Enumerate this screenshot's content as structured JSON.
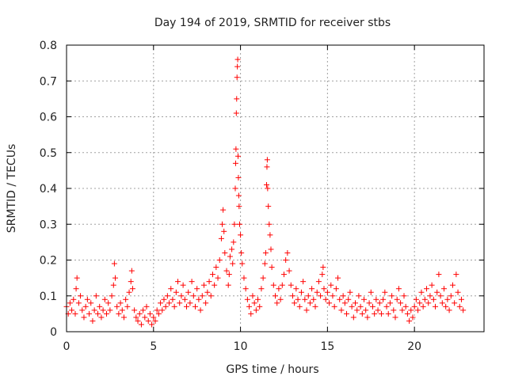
{
  "chart_data": {
    "type": "scatter",
    "title": "Day 194 of 2019, SRMTID for receiver stbs",
    "xlabel": "GPS time / hours",
    "ylabel": "SRMTID / TECUs",
    "xlim": [
      0,
      24
    ],
    "ylim": [
      0,
      0.8
    ],
    "xticks": [
      0,
      5,
      10,
      15,
      20
    ],
    "yticks": [
      0,
      0.1,
      0.2,
      0.3,
      0.4,
      0.5,
      0.6,
      0.7,
      0.8
    ],
    "grid": true,
    "marker": "+",
    "color": "#ff0000",
    "series": [
      {
        "name": "stbs",
        "points": [
          [
            0.0,
            0.07
          ],
          [
            0.1,
            0.05
          ],
          [
            0.2,
            0.08
          ],
          [
            0.3,
            0.06
          ],
          [
            0.4,
            0.09
          ],
          [
            0.5,
            0.05
          ],
          [
            0.55,
            0.12
          ],
          [
            0.6,
            0.15
          ],
          [
            0.7,
            0.08
          ],
          [
            0.8,
            0.1
          ],
          [
            0.9,
            0.06
          ],
          [
            1.0,
            0.04
          ],
          [
            1.1,
            0.07
          ],
          [
            1.2,
            0.09
          ],
          [
            1.3,
            0.05
          ],
          [
            1.4,
            0.08
          ],
          [
            1.5,
            0.03
          ],
          [
            1.6,
            0.06
          ],
          [
            1.7,
            0.1
          ],
          [
            1.8,
            0.05
          ],
          [
            1.9,
            0.07
          ],
          [
            2.0,
            0.04
          ],
          [
            2.1,
            0.06
          ],
          [
            2.2,
            0.09
          ],
          [
            2.3,
            0.05
          ],
          [
            2.4,
            0.08
          ],
          [
            2.5,
            0.06
          ],
          [
            2.6,
            0.1
          ],
          [
            2.7,
            0.13
          ],
          [
            2.75,
            0.19
          ],
          [
            2.8,
            0.15
          ],
          [
            2.9,
            0.07
          ],
          [
            3.0,
            0.05
          ],
          [
            3.1,
            0.08
          ],
          [
            3.2,
            0.06
          ],
          [
            3.3,
            0.04
          ],
          [
            3.4,
            0.09
          ],
          [
            3.5,
            0.07
          ],
          [
            3.6,
            0.11
          ],
          [
            3.7,
            0.14
          ],
          [
            3.75,
            0.17
          ],
          [
            3.8,
            0.12
          ],
          [
            3.9,
            0.06
          ],
          [
            4.0,
            0.04
          ],
          [
            4.1,
            0.03
          ],
          [
            4.2,
            0.05
          ],
          [
            4.3,
            0.02
          ],
          [
            4.4,
            0.06
          ],
          [
            4.5,
            0.04
          ],
          [
            4.6,
            0.07
          ],
          [
            4.7,
            0.03
          ],
          [
            4.8,
            0.05
          ],
          [
            4.9,
            0.02
          ],
          [
            5.0,
            0.04
          ],
          [
            5.1,
            0.03
          ],
          [
            5.2,
            0.06
          ],
          [
            5.3,
            0.05
          ],
          [
            5.4,
            0.08
          ],
          [
            5.5,
            0.06
          ],
          [
            5.6,
            0.09
          ],
          [
            5.7,
            0.07
          ],
          [
            5.8,
            0.1
          ],
          [
            5.9,
            0.08
          ],
          [
            6.0,
            0.12
          ],
          [
            6.1,
            0.09
          ],
          [
            6.2,
            0.07
          ],
          [
            6.3,
            0.11
          ],
          [
            6.4,
            0.14
          ],
          [
            6.5,
            0.08
          ],
          [
            6.6,
            0.1
          ],
          [
            6.7,
            0.13
          ],
          [
            6.8,
            0.09
          ],
          [
            6.9,
            0.07
          ],
          [
            7.0,
            0.11
          ],
          [
            7.1,
            0.08
          ],
          [
            7.2,
            0.14
          ],
          [
            7.3,
            0.1
          ],
          [
            7.4,
            0.07
          ],
          [
            7.5,
            0.12
          ],
          [
            7.6,
            0.09
          ],
          [
            7.7,
            0.06
          ],
          [
            7.8,
            0.1
          ],
          [
            7.9,
            0.13
          ],
          [
            8.0,
            0.08
          ],
          [
            8.1,
            0.11
          ],
          [
            8.2,
            0.14
          ],
          [
            8.3,
            0.1
          ],
          [
            8.4,
            0.16
          ],
          [
            8.5,
            0.13
          ],
          [
            8.6,
            0.18
          ],
          [
            8.7,
            0.15
          ],
          [
            8.8,
            0.2
          ],
          [
            8.9,
            0.26
          ],
          [
            8.95,
            0.3
          ],
          [
            9.0,
            0.34
          ],
          [
            9.05,
            0.28
          ],
          [
            9.1,
            0.22
          ],
          [
            9.2,
            0.17
          ],
          [
            9.3,
            0.13
          ],
          [
            9.35,
            0.16
          ],
          [
            9.4,
            0.21
          ],
          [
            9.5,
            0.23
          ],
          [
            9.55,
            0.19
          ],
          [
            9.6,
            0.25
          ],
          [
            9.65,
            0.3
          ],
          [
            9.7,
            0.4
          ],
          [
            9.72,
            0.47
          ],
          [
            9.74,
            0.51
          ],
          [
            9.76,
            0.61
          ],
          [
            9.78,
            0.65
          ],
          [
            9.8,
            0.71
          ],
          [
            9.82,
            0.74
          ],
          [
            9.84,
            0.76
          ],
          [
            9.86,
            0.49
          ],
          [
            9.88,
            0.43
          ],
          [
            9.9,
            0.38
          ],
          [
            9.92,
            0.35
          ],
          [
            9.95,
            0.3
          ],
          [
            10.0,
            0.27
          ],
          [
            10.05,
            0.22
          ],
          [
            10.1,
            0.19
          ],
          [
            10.2,
            0.15
          ],
          [
            10.3,
            0.12
          ],
          [
            10.4,
            0.09
          ],
          [
            10.5,
            0.07
          ],
          [
            10.6,
            0.05
          ],
          [
            10.7,
            0.1
          ],
          [
            10.8,
            0.08
          ],
          [
            10.9,
            0.06
          ],
          [
            11.0,
            0.09
          ],
          [
            11.1,
            0.07
          ],
          [
            11.2,
            0.12
          ],
          [
            11.3,
            0.15
          ],
          [
            11.4,
            0.19
          ],
          [
            11.45,
            0.22
          ],
          [
            11.5,
            0.41
          ],
          [
            11.52,
            0.46
          ],
          [
            11.54,
            0.48
          ],
          [
            11.56,
            0.4
          ],
          [
            11.6,
            0.35
          ],
          [
            11.65,
            0.3
          ],
          [
            11.7,
            0.27
          ],
          [
            11.75,
            0.23
          ],
          [
            11.8,
            0.18
          ],
          [
            11.9,
            0.13
          ],
          [
            12.0,
            0.1
          ],
          [
            12.1,
            0.08
          ],
          [
            12.2,
            0.12
          ],
          [
            12.3,
            0.09
          ],
          [
            12.4,
            0.13
          ],
          [
            12.5,
            0.16
          ],
          [
            12.6,
            0.2
          ],
          [
            12.7,
            0.22
          ],
          [
            12.8,
            0.17
          ],
          [
            12.9,
            0.13
          ],
          [
            13.0,
            0.1
          ],
          [
            13.1,
            0.08
          ],
          [
            13.2,
            0.12
          ],
          [
            13.3,
            0.09
          ],
          [
            13.4,
            0.07
          ],
          [
            13.5,
            0.11
          ],
          [
            13.6,
            0.14
          ],
          [
            13.7,
            0.09
          ],
          [
            13.8,
            0.06
          ],
          [
            13.9,
            0.1
          ],
          [
            14.0,
            0.08
          ],
          [
            14.1,
            0.12
          ],
          [
            14.2,
            0.09
          ],
          [
            14.3,
            0.07
          ],
          [
            14.4,
            0.11
          ],
          [
            14.5,
            0.14
          ],
          [
            14.6,
            0.1
          ],
          [
            14.7,
            0.16
          ],
          [
            14.75,
            0.18
          ],
          [
            14.8,
            0.12
          ],
          [
            14.9,
            0.09
          ],
          [
            15.0,
            0.11
          ],
          [
            15.1,
            0.08
          ],
          [
            15.2,
            0.13
          ],
          [
            15.3,
            0.1
          ],
          [
            15.4,
            0.07
          ],
          [
            15.5,
            0.12
          ],
          [
            15.6,
            0.15
          ],
          [
            15.7,
            0.09
          ],
          [
            15.8,
            0.06
          ],
          [
            15.9,
            0.1
          ],
          [
            16.0,
            0.08
          ],
          [
            16.1,
            0.05
          ],
          [
            16.2,
            0.09
          ],
          [
            16.3,
            0.11
          ],
          [
            16.4,
            0.07
          ],
          [
            16.5,
            0.04
          ],
          [
            16.6,
            0.08
          ],
          [
            16.7,
            0.06
          ],
          [
            16.8,
            0.1
          ],
          [
            16.9,
            0.07
          ],
          [
            17.0,
            0.05
          ],
          [
            17.1,
            0.09
          ],
          [
            17.2,
            0.06
          ],
          [
            17.3,
            0.04
          ],
          [
            17.4,
            0.08
          ],
          [
            17.5,
            0.11
          ],
          [
            17.6,
            0.07
          ],
          [
            17.7,
            0.05
          ],
          [
            17.8,
            0.09
          ],
          [
            17.9,
            0.06
          ],
          [
            18.0,
            0.08
          ],
          [
            18.1,
            0.05
          ],
          [
            18.2,
            0.09
          ],
          [
            18.3,
            0.11
          ],
          [
            18.4,
            0.07
          ],
          [
            18.5,
            0.05
          ],
          [
            18.6,
            0.08
          ],
          [
            18.7,
            0.1
          ],
          [
            18.8,
            0.06
          ],
          [
            18.9,
            0.04
          ],
          [
            19.0,
            0.09
          ],
          [
            19.1,
            0.12
          ],
          [
            19.2,
            0.08
          ],
          [
            19.3,
            0.06
          ],
          [
            19.4,
            0.1
          ],
          [
            19.5,
            0.07
          ],
          [
            19.6,
            0.05
          ],
          [
            19.7,
            0.03
          ],
          [
            19.8,
            0.06
          ],
          [
            19.9,
            0.04
          ],
          [
            20.0,
            0.07
          ],
          [
            20.1,
            0.09
          ],
          [
            20.2,
            0.06
          ],
          [
            20.3,
            0.08
          ],
          [
            20.4,
            0.11
          ],
          [
            20.5,
            0.07
          ],
          [
            20.6,
            0.09
          ],
          [
            20.7,
            0.12
          ],
          [
            20.8,
            0.08
          ],
          [
            20.9,
            0.1
          ],
          [
            21.0,
            0.13
          ],
          [
            21.1,
            0.09
          ],
          [
            21.2,
            0.07
          ],
          [
            21.3,
            0.11
          ],
          [
            21.4,
            0.16
          ],
          [
            21.5,
            0.1
          ],
          [
            21.6,
            0.08
          ],
          [
            21.7,
            0.12
          ],
          [
            21.8,
            0.07
          ],
          [
            21.9,
            0.09
          ],
          [
            22.0,
            0.06
          ],
          [
            22.1,
            0.1
          ],
          [
            22.2,
            0.13
          ],
          [
            22.3,
            0.08
          ],
          [
            22.4,
            0.16
          ],
          [
            22.5,
            0.11
          ],
          [
            22.6,
            0.07
          ],
          [
            22.7,
            0.09
          ],
          [
            22.8,
            0.06
          ]
        ]
      }
    ]
  }
}
